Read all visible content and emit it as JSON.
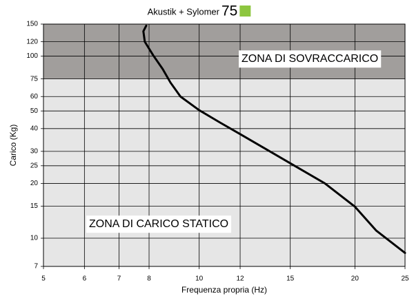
{
  "chart_data": {
    "type": "line",
    "title": "Akustik + Sylomer",
    "title_number": "75",
    "title_badge_color": "#8dc63f",
    "x_label": "Frequenza propria (Hz)",
    "y_label": "Carico (Kg)",
    "log_x": true,
    "log_y": true,
    "grid": true,
    "xlim": [
      5,
      25
    ],
    "xticks": [
      5,
      6,
      7,
      8,
      10,
      12,
      15,
      20,
      25
    ],
    "ylim": [
      7,
      150
    ],
    "yticks": [
      7,
      10,
      15,
      20,
      25,
      30,
      40,
      50,
      60,
      75,
      100,
      120,
      150
    ],
    "zones": [
      {
        "label": "ZONA DI CARICO STATICO",
        "from": 7,
        "to": 75,
        "color": "#e6e6e6"
      },
      {
        "label": "ZONA DI SOVRACCARICO",
        "from": 75,
        "to": 150,
        "color": "#a19e9c"
      }
    ],
    "x": [
      25,
      22,
      20,
      17.5,
      15,
      12,
      11,
      10,
      9.2,
      8.8,
      8.5,
      8.15,
      7.85,
      7.8,
      7.9
    ],
    "series": [
      {
        "color": "#000000",
        "values": [
          8.3,
          11,
          14.9,
          20,
          25.8,
          37.3,
          43,
          50.5,
          60,
          71.6,
          85,
          101,
          120,
          137,
          147
        ]
      }
    ]
  }
}
